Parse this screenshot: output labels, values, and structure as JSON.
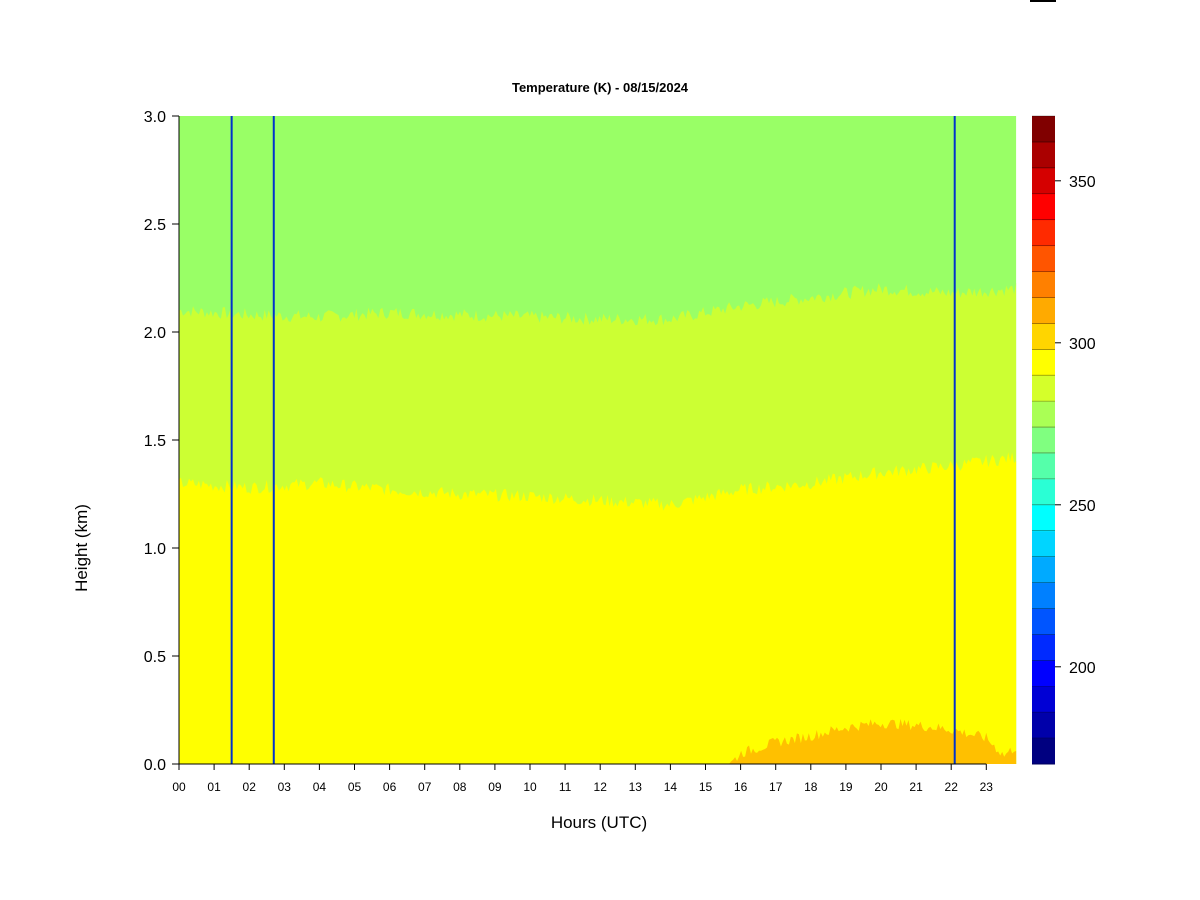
{
  "chart_data": {
    "type": "heatmap",
    "title": "Temperature (K) - 08/15/2024",
    "xlabel": "Hours (UTC)",
    "ylabel": "Height (km)",
    "xlim": [
      0,
      23.85
    ],
    "ylim": [
      0.0,
      3.0
    ],
    "x_ticks": [
      "00",
      "01",
      "02",
      "03",
      "04",
      "05",
      "06",
      "07",
      "08",
      "09",
      "10",
      "11",
      "12",
      "13",
      "14",
      "15",
      "16",
      "17",
      "18",
      "19",
      "20",
      "21",
      "22",
      "23"
    ],
    "y_ticks": [
      "0.0",
      "0.5",
      "1.0",
      "1.5",
      "2.0",
      "2.5",
      "3.0"
    ],
    "colorbar": {
      "min": 170,
      "max": 370,
      "step": 10,
      "ticks": [
        "200",
        "250",
        "300",
        "350"
      ],
      "colors": [
        "#000080",
        "#0000AA",
        "#0000D5",
        "#0000FF",
        "#002AFF",
        "#0055FF",
        "#0080FF",
        "#00AAFF",
        "#00D5FF",
        "#00FFFF",
        "#2AFFD5",
        "#55FFAA",
        "#80FF80",
        "#AAFF55",
        "#D5FF2A",
        "#FFFF00",
        "#FFD500",
        "#FFAA00",
        "#FF8000",
        "#FF5500",
        "#FF2A00",
        "#FF0000",
        "#D50000",
        "#AA0000",
        "#800000"
      ]
    },
    "layers": [
      {
        "level_K": 310,
        "color": "#FFC000",
        "description_range_K": [
          300,
          310
        ],
        "top_km_by_hour": [
          [
            0,
            0
          ],
          [
            15.7,
            0
          ],
          [
            16.0,
            0.05
          ],
          [
            17.0,
            0.1
          ],
          [
            18.0,
            0.13
          ],
          [
            19.0,
            0.17
          ],
          [
            20.0,
            0.19
          ],
          [
            21.0,
            0.18
          ],
          [
            22.0,
            0.16
          ],
          [
            23.0,
            0.12
          ],
          [
            23.5,
            0.04
          ],
          [
            23.85,
            0.08
          ]
        ]
      },
      {
        "level_K": 300,
        "color": "#FFFF00",
        "top_km_by_hour": [
          [
            0,
            1.3
          ],
          [
            2,
            1.28
          ],
          [
            4,
            1.3
          ],
          [
            6,
            1.27
          ],
          [
            8,
            1.25
          ],
          [
            10,
            1.24
          ],
          [
            12,
            1.22
          ],
          [
            14,
            1.2
          ],
          [
            16,
            1.27
          ],
          [
            18,
            1.3
          ],
          [
            20,
            1.35
          ],
          [
            22,
            1.38
          ],
          [
            23.85,
            1.42
          ]
        ]
      },
      {
        "level_K": 290,
        "color": "#CCFF33",
        "top_km_by_hour": [
          [
            0,
            2.1
          ],
          [
            2,
            2.08
          ],
          [
            4,
            2.07
          ],
          [
            6,
            2.09
          ],
          [
            8,
            2.08
          ],
          [
            10,
            2.07
          ],
          [
            12,
            2.06
          ],
          [
            14,
            2.06
          ],
          [
            16,
            2.12
          ],
          [
            18,
            2.16
          ],
          [
            20,
            2.2
          ],
          [
            22,
            2.18
          ],
          [
            23.85,
            2.2
          ]
        ]
      },
      {
        "level_K": 280,
        "color": "#99FF66",
        "top_km_by_hour": [
          [
            0,
            3.0
          ],
          [
            23.85,
            3.0
          ]
        ]
      }
    ],
    "missing_data_lines_hours": [
      1.5,
      2.7,
      22.1
    ],
    "grid": false,
    "legend": "colorbar-right"
  }
}
